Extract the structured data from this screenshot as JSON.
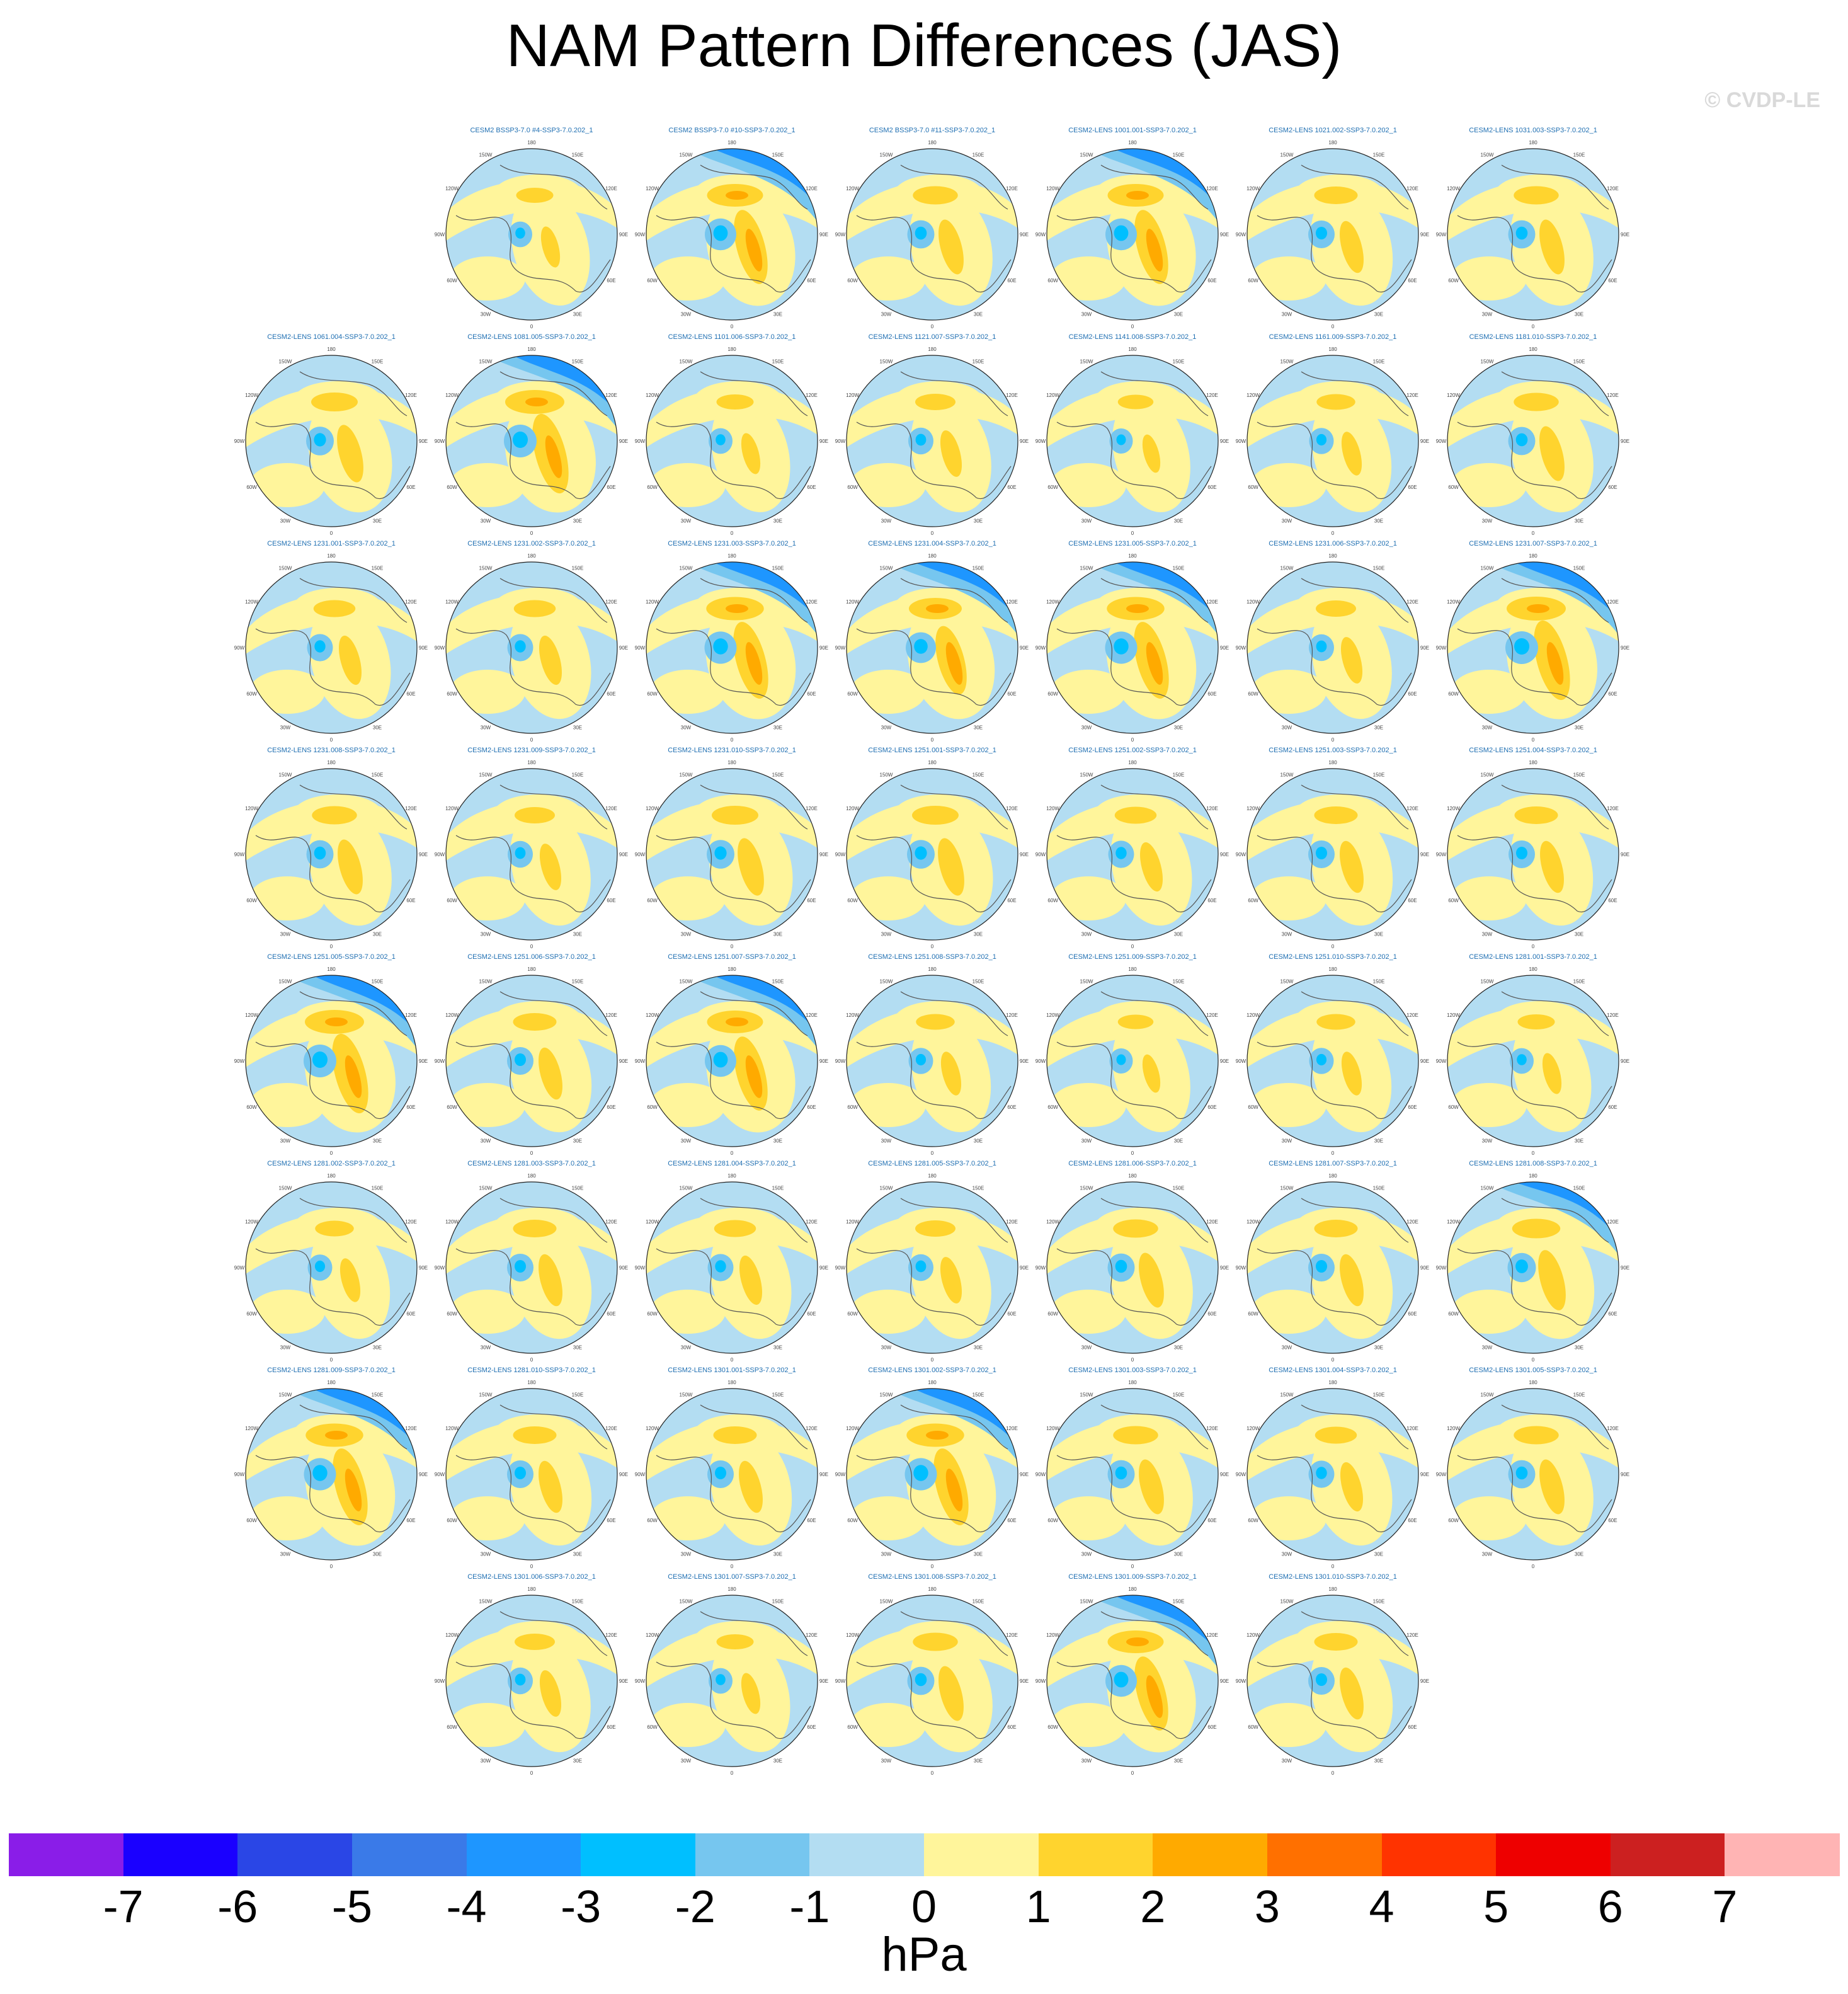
{
  "title": "NAM Pattern Differences (JAS)",
  "watermark": "© CVDP-LE",
  "units_label": "hPa",
  "map": {
    "projection": "north-polar-stereographic",
    "longitude_labels": [
      "180",
      "150E",
      "120E",
      "90E",
      "60E",
      "30E",
      "0",
      "30W",
      "60W",
      "90W",
      "120W",
      "150W"
    ]
  },
  "colorbar": {
    "tick_labels": [
      "-7",
      "-6",
      "-5",
      "-4",
      "-3",
      "-2",
      "-1",
      "0",
      "1",
      "2",
      "3",
      "4",
      "5",
      "6",
      "7"
    ],
    "colors": [
      "#8a1de8",
      "#1a00ff",
      "#2a46e6",
      "#3a7ae8",
      "#1e96ff",
      "#00bfff",
      "#76c6ef",
      "#b3ddf2",
      "#fff59b",
      "#ffd42e",
      "#ffaa00",
      "#ff7000",
      "#ff3300",
      "#ee0000",
      "#cc2020",
      "#ffb4b4"
    ]
  },
  "rows": [
    {
      "panels": [
        {
          "title": "CESM2 BSSP3-7.0 #4-SSP3-7.0.202_1",
          "s": 0.3
        },
        {
          "title": "CESM2 BSSP3-7.0 #10-SSP3-7.0.202_1",
          "s": 0.9
        },
        {
          "title": "CESM2 BSSP3-7.0 #11-SSP3-7.0.202_1",
          "s": 0.55
        },
        {
          "title": "CESM2-LENS 1001.001-SSP3-7.0.202_1",
          "s": 0.9
        },
        {
          "title": "CESM2-LENS 1021.002-SSP3-7.0.202_1",
          "s": 0.5
        },
        {
          "title": "CESM2-LENS 1031.003-SSP3-7.0.202_1",
          "s": 0.55
        }
      ]
    },
    {
      "panels": [
        {
          "title": "CESM2-LENS 1061.004-SSP3-7.0.202_1",
          "s": 0.6
        },
        {
          "title": "CESM2-LENS 1081.005-SSP3-7.0.202_1",
          "s": 1.0
        },
        {
          "title": "CESM2-LENS 1101.006-SSP3-7.0.202_1",
          "s": 0.3
        },
        {
          "title": "CESM2-LENS 1121.007-SSP3-7.0.202_1",
          "s": 0.4
        },
        {
          "title": "CESM2-LENS 1141.008-SSP3-7.0.202_1",
          "s": 0.25
        },
        {
          "title": "CESM2-LENS 1161.009-SSP3-7.0.202_1",
          "s": 0.35
        },
        {
          "title": "CESM2-LENS 1181.010-SSP3-7.0.202_1",
          "s": 0.55
        }
      ]
    },
    {
      "panels": [
        {
          "title": "CESM2-LENS 1231.001-SSP3-7.0.202_1",
          "s": 0.45
        },
        {
          "title": "CESM2-LENS 1231.002-SSP3-7.0.202_1",
          "s": 0.45
        },
        {
          "title": "CESM2-LENS 1231.003-SSP3-7.0.202_1",
          "s": 0.95
        },
        {
          "title": "CESM2-LENS 1231.004-SSP3-7.0.202_1",
          "s": 0.8
        },
        {
          "title": "CESM2-LENS 1231.005-SSP3-7.0.202_1",
          "s": 0.95
        },
        {
          "title": "CESM2-LENS 1231.006-SSP3-7.0.202_1",
          "s": 0.4
        },
        {
          "title": "CESM2-LENS 1231.007-SSP3-7.0.202_1",
          "s": 1.0
        }
      ]
    },
    {
      "panels": [
        {
          "title": "CESM2-LENS 1231.008-SSP3-7.0.202_1",
          "s": 0.55
        },
        {
          "title": "CESM2-LENS 1231.009-SSP3-7.0.202_1",
          "s": 0.4
        },
        {
          "title": "CESM2-LENS 1231.010-SSP3-7.0.202_1",
          "s": 0.6
        },
        {
          "title": "CESM2-LENS 1251.001-SSP3-7.0.202_1",
          "s": 0.6
        },
        {
          "title": "CESM2-LENS 1251.002-SSP3-7.0.202_1",
          "s": 0.45
        },
        {
          "title": "CESM2-LENS 1251.003-SSP3-7.0.202_1",
          "s": 0.5
        },
        {
          "title": "CESM2-LENS 1251.004-SSP3-7.0.202_1",
          "s": 0.5
        }
      ]
    },
    {
      "panels": [
        {
          "title": "CESM2-LENS 1251.005-SSP3-7.0.202_1",
          "s": 1.0
        },
        {
          "title": "CESM2-LENS 1251.006-SSP3-7.0.202_1",
          "s": 0.5
        },
        {
          "title": "CESM2-LENS 1251.007-SSP3-7.0.202_1",
          "s": 0.9
        },
        {
          "title": "CESM2-LENS 1251.008-SSP3-7.0.202_1",
          "s": 0.35
        },
        {
          "title": "CESM2-LENS 1251.009-SSP3-7.0.202_1",
          "s": 0.25
        },
        {
          "title": "CESM2-LENS 1251.010-SSP3-7.0.202_1",
          "s": 0.35
        },
        {
          "title": "CESM2-LENS 1281.001-SSP3-7.0.202_1",
          "s": 0.3
        }
      ]
    },
    {
      "panels": [
        {
          "title": "CESM2-LENS 1281.002-SSP3-7.0.202_1",
          "s": 0.35
        },
        {
          "title": "CESM2-LENS 1281.003-SSP3-7.0.202_1",
          "s": 0.5
        },
        {
          "title": "CESM2-LENS 1281.004-SSP3-7.0.202_1",
          "s": 0.45
        },
        {
          "title": "CESM2-LENS 1281.005-SSP3-7.0.202_1",
          "s": 0.4
        },
        {
          "title": "CESM2-LENS 1281.006-SSP3-7.0.202_1",
          "s": 0.55
        },
        {
          "title": "CESM2-LENS 1281.007-SSP3-7.0.202_1",
          "s": 0.5
        },
        {
          "title": "CESM2-LENS 1281.008-SSP3-7.0.202_1",
          "s": 0.65
        }
      ]
    },
    {
      "panels": [
        {
          "title": "CESM2-LENS 1281.009-SSP3-7.0.202_1",
          "s": 0.95
        },
        {
          "title": "CESM2-LENS 1281.010-SSP3-7.0.202_1",
          "s": 0.5
        },
        {
          "title": "CESM2-LENS 1301.001-SSP3-7.0.202_1",
          "s": 0.5
        },
        {
          "title": "CESM2-LENS 1301.002-SSP3-7.0.202_1",
          "s": 0.95
        },
        {
          "title": "CESM2-LENS 1301.003-SSP3-7.0.202_1",
          "s": 0.55
        },
        {
          "title": "CESM2-LENS 1301.004-SSP3-7.0.202_1",
          "s": 0.45
        },
        {
          "title": "CESM2-LENS 1301.005-SSP3-7.0.202_1",
          "s": 0.55
        }
      ]
    },
    {
      "panels": [
        {
          "title": "CESM2-LENS 1301.006-SSP3-7.0.202_1",
          "s": 0.4
        },
        {
          "title": "CESM2-LENS 1301.007-SSP3-7.0.202_1",
          "s": 0.3
        },
        {
          "title": "CESM2-LENS 1301.008-SSP3-7.0.202_1",
          "s": 0.55
        },
        {
          "title": "CESM2-LENS 1301.009-SSP3-7.0.202_1",
          "s": 0.9
        },
        {
          "title": "CESM2-LENS 1301.010-SSP3-7.0.202_1",
          "s": 0.5
        }
      ]
    }
  ]
}
